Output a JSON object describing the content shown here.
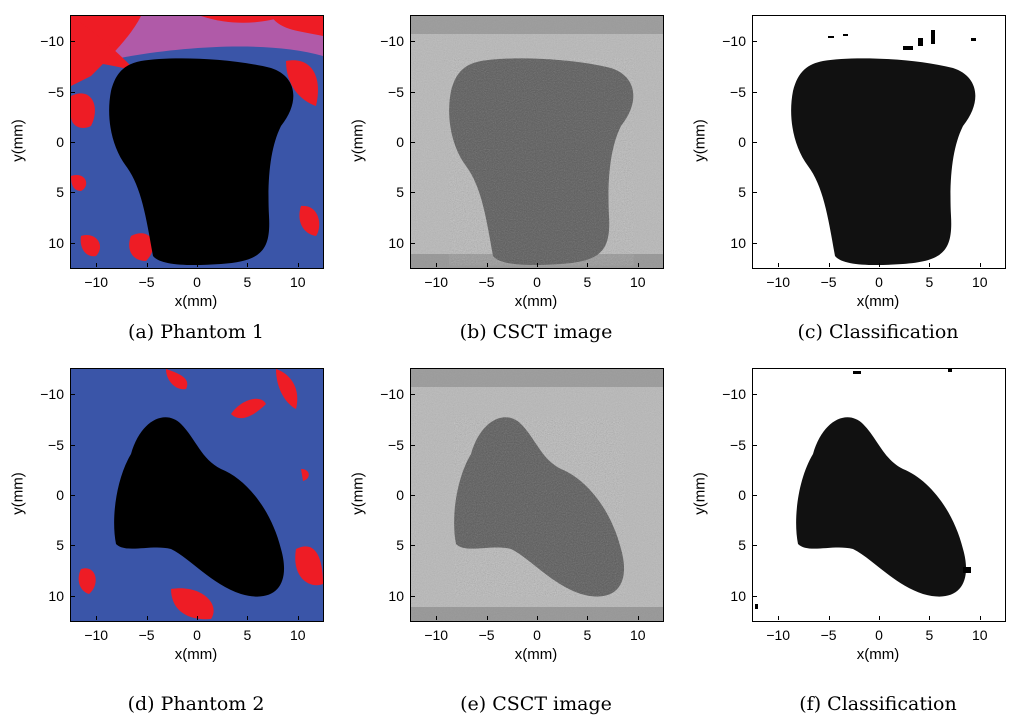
{
  "figure": {
    "panels": [
      {
        "id": "a",
        "caption": "(a) Phantom 1",
        "xlabel": "x(mm)",
        "ylabel": "y(mm)",
        "style": "phantom1"
      },
      {
        "id": "b",
        "caption": "(b) CSCT image",
        "xlabel": "x(mm)",
        "ylabel": "y(mm)",
        "style": "csct1"
      },
      {
        "id": "c",
        "caption": "(c) Classification",
        "xlabel": "x(mm)",
        "ylabel": "y(mm)",
        "style": "class1"
      },
      {
        "id": "d",
        "caption": "(d) Phantom 2",
        "xlabel": "x(mm)",
        "ylabel": "y(mm)",
        "style": "phantom2"
      },
      {
        "id": "e",
        "caption": "(e) CSCT image",
        "xlabel": "x(mm)",
        "ylabel": "y(mm)",
        "style": "csct2"
      },
      {
        "id": "f",
        "caption": "(f) Classification",
        "xlabel": "x(mm)",
        "ylabel": "y(mm)",
        "style": "class2"
      }
    ],
    "x_ticks": [
      "−10",
      "−5",
      "0",
      "5",
      "10"
    ],
    "y_ticks": [
      "−10",
      "−5",
      "0",
      "5",
      "10"
    ],
    "axis_range_mm": [
      -12.5,
      12.5
    ],
    "colors": {
      "blue": "#3a55a8",
      "red": "#ee1c25",
      "magenta": "#b05aa8",
      "black": "#000000",
      "gray_light": "#b8b8b8",
      "gray_dark": "#5a5a5a",
      "white": "#ffffff"
    }
  }
}
